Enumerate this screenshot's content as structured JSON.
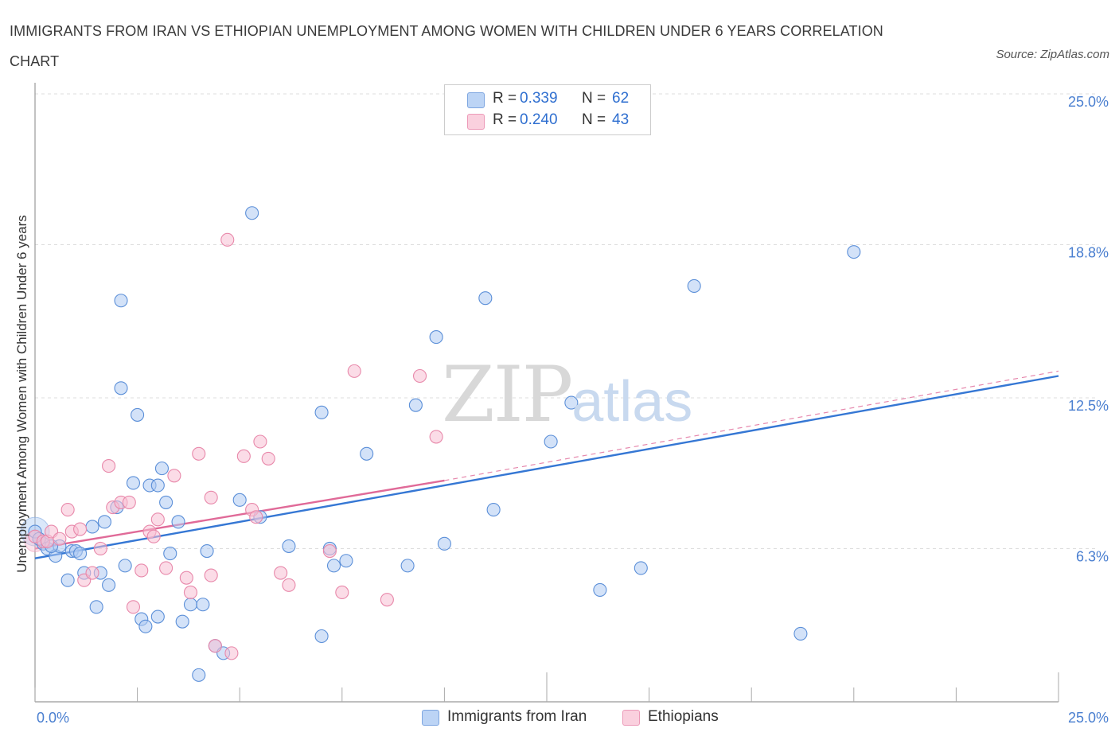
{
  "title": "IMMIGRANTS FROM IRAN VS ETHIOPIAN UNEMPLOYMENT AMONG WOMEN WITH CHILDREN UNDER 6 YEARS CORRELATION CHART",
  "source": "Source: ZipAtlas.com",
  "watermark": {
    "zip": "ZIP",
    "atlas": "atlas"
  },
  "legend": {
    "rows": [
      {
        "r_label": "R =",
        "r_value": "0.339",
        "n_label": "N =",
        "n_value": "62",
        "color": "#aecbf3"
      },
      {
        "r_label": "R =",
        "r_value": "0.240",
        "n_label": "N =",
        "n_value": "43",
        "color": "#f7c0d3"
      }
    ]
  },
  "bottom_legend": [
    {
      "label": "Immigrants from Iran",
      "color": "#aecbf3"
    },
    {
      "label": "Ethiopians",
      "color": "#f7c0d3"
    }
  ],
  "chart_data": {
    "type": "scatter",
    "title": "IMMIGRANTS FROM IRAN VS ETHIOPIAN UNEMPLOYMENT AMONG WOMEN WITH CHILDREN UNDER 6 YEARS CORRELATION CHART",
    "xlabel": "",
    "ylabel": "Unemployment Among Women with Children Under 6 years",
    "xlim": [
      0,
      25
    ],
    "ylim": [
      0,
      25
    ],
    "x_tick_labels": [
      "0.0%",
      "25.0%"
    ],
    "y_ticks": [
      6.3,
      12.5,
      18.8,
      25.0
    ],
    "y_tick_labels": [
      "6.3%",
      "12.5%",
      "18.8%",
      "25.0%"
    ],
    "grid": true,
    "legend_position": "top-center",
    "series": [
      {
        "name": "Immigrants from Iran",
        "color": "#5b8fd8",
        "fill": "#aecbf3",
        "trend": {
          "x": [
            0,
            25
          ],
          "y": [
            5.9,
            13.4
          ],
          "color": "#3577d4"
        },
        "points": [
          [
            0.0,
            7.0
          ],
          [
            0.2,
            6.5
          ],
          [
            0.3,
            6.3
          ],
          [
            0.5,
            6.0
          ],
          [
            0.6,
            6.4
          ],
          [
            0.8,
            5.0
          ],
          [
            0.9,
            6.2
          ],
          [
            1.0,
            6.2
          ],
          [
            1.2,
            5.3
          ],
          [
            1.4,
            7.2
          ],
          [
            1.5,
            3.9
          ],
          [
            1.6,
            5.3
          ],
          [
            1.7,
            7.4
          ],
          [
            1.8,
            4.8
          ],
          [
            2.0,
            8.0
          ],
          [
            2.1,
            12.9
          ],
          [
            2.1,
            16.5
          ],
          [
            2.2,
            5.6
          ],
          [
            2.4,
            9.0
          ],
          [
            2.5,
            11.8
          ],
          [
            2.6,
            3.4
          ],
          [
            2.7,
            3.1
          ],
          [
            2.8,
            8.9
          ],
          [
            3.0,
            8.9
          ],
          [
            3.0,
            3.5
          ],
          [
            3.1,
            9.6
          ],
          [
            3.2,
            8.2
          ],
          [
            3.3,
            6.1
          ],
          [
            3.5,
            7.4
          ],
          [
            3.6,
            3.3
          ],
          [
            3.8,
            4.0
          ],
          [
            4.0,
            1.1
          ],
          [
            4.1,
            4.0
          ],
          [
            4.4,
            2.3
          ],
          [
            4.6,
            2.0
          ],
          [
            5.3,
            20.1
          ],
          [
            5.0,
            8.3
          ],
          [
            5.5,
            7.6
          ],
          [
            6.2,
            6.4
          ],
          [
            7.0,
            11.9
          ],
          [
            7.0,
            2.7
          ],
          [
            7.2,
            6.3
          ],
          [
            7.3,
            5.6
          ],
          [
            7.6,
            5.8
          ],
          [
            8.1,
            10.2
          ],
          [
            9.1,
            5.6
          ],
          [
            9.3,
            12.2
          ],
          [
            9.8,
            15.0
          ],
          [
            10.0,
            6.5
          ],
          [
            11.0,
            16.6
          ],
          [
            11.2,
            7.9
          ],
          [
            12.6,
            10.7
          ],
          [
            13.1,
            12.3
          ],
          [
            13.8,
            4.6
          ],
          [
            14.8,
            5.5
          ],
          [
            16.1,
            17.1
          ],
          [
            18.7,
            2.8
          ],
          [
            20.0,
            18.5
          ],
          [
            0.1,
            6.7
          ],
          [
            0.4,
            6.4
          ],
          [
            1.1,
            6.1
          ],
          [
            4.2,
            6.2
          ]
        ]
      },
      {
        "name": "Ethiopians",
        "color": "#e888aa",
        "fill": "#f7c0d3",
        "trend": {
          "x": [
            0,
            10
          ],
          "y": [
            6.3,
            9.1
          ],
          "color": "#e06a98"
        },
        "trend_dashed": {
          "x": [
            10,
            25
          ],
          "y": [
            9.1,
            13.6
          ]
        },
        "points": [
          [
            0.0,
            6.8
          ],
          [
            0.2,
            6.6
          ],
          [
            0.3,
            6.6
          ],
          [
            0.4,
            7.0
          ],
          [
            0.6,
            6.7
          ],
          [
            0.8,
            7.9
          ],
          [
            0.9,
            7.0
          ],
          [
            1.1,
            7.1
          ],
          [
            1.2,
            5.0
          ],
          [
            1.4,
            5.3
          ],
          [
            1.6,
            6.3
          ],
          [
            1.8,
            9.7
          ],
          [
            1.9,
            8.0
          ],
          [
            2.1,
            8.2
          ],
          [
            2.3,
            8.2
          ],
          [
            2.4,
            3.9
          ],
          [
            2.6,
            5.4
          ],
          [
            2.8,
            7.0
          ],
          [
            2.9,
            6.8
          ],
          [
            3.0,
            7.5
          ],
          [
            3.2,
            5.5
          ],
          [
            3.4,
            9.3
          ],
          [
            3.7,
            5.1
          ],
          [
            3.8,
            4.5
          ],
          [
            4.0,
            10.2
          ],
          [
            4.3,
            8.4
          ],
          [
            4.3,
            5.2
          ],
          [
            4.4,
            2.3
          ],
          [
            4.7,
            19.0
          ],
          [
            4.8,
            2.0
          ],
          [
            5.1,
            10.1
          ],
          [
            5.3,
            7.9
          ],
          [
            5.5,
            10.7
          ],
          [
            5.7,
            10.0
          ],
          [
            6.0,
            5.3
          ],
          [
            6.2,
            4.8
          ],
          [
            7.2,
            6.2
          ],
          [
            7.5,
            4.5
          ],
          [
            7.8,
            13.6
          ],
          [
            8.6,
            4.2
          ],
          [
            9.4,
            13.4
          ],
          [
            9.8,
            10.9
          ],
          [
            5.4,
            7.6
          ]
        ]
      }
    ]
  }
}
